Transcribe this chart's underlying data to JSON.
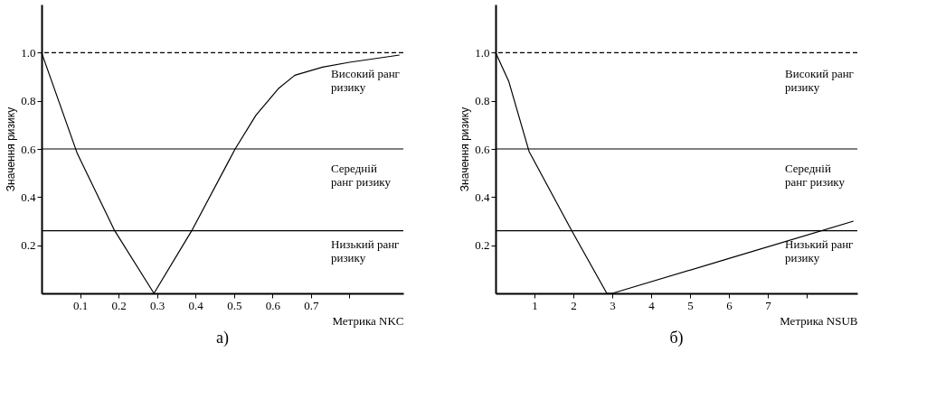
{
  "chart_data": [
    {
      "type": "line",
      "title": "а)",
      "xlabel": "Метрика NKC",
      "ylabel": "Значення ризику",
      "x": [
        0,
        0.093,
        0.19,
        0.292,
        0.39,
        0.503,
        0.557,
        0.615,
        0.658,
        0.73,
        0.8,
        0.93
      ],
      "series": [
        {
          "color": "#000000",
          "values": [
            1.0,
            0.58,
            0.26,
            0,
            0.26,
            0.6,
            0.74,
            0.85,
            0.906,
            0.94,
            0.96,
            0.99
          ]
        }
      ],
      "xlim": [
        0,
        0.94
      ],
      "ylim": [
        0,
        1.2
      ],
      "xticks": [
        0.1,
        0.2,
        0.3,
        0.4,
        0.5,
        0.6,
        0.7,
        {
          "value": 0.8,
          "label": null
        }
      ],
      "yticks": [
        0.2,
        0.4,
        0.6,
        0.8,
        {
          "value": 1,
          "label": "1.0"
        }
      ],
      "ref_lines": [
        {
          "axis": "y",
          "value": 1,
          "line_style": "dashed",
          "color": "#000000"
        },
        {
          "axis": "y",
          "value": 0.6,
          "line_style": "solid",
          "color": "#000000"
        },
        {
          "axis": "y",
          "value": 0.26,
          "line_style": "solid",
          "color": "#000000"
        }
      ],
      "annotations": [
        "Високий ранг\nризику",
        "Середній\nранг ризику",
        "Низький ранг\nризику"
      ],
      "grid": false,
      "marker": "none",
      "line_style": "solid"
    },
    {
      "type": "line",
      "title": "б)",
      "xlabel": "Метрика NSUB",
      "ylabel": "Значення ризику",
      "x": [
        0,
        0.34,
        0.86,
        1.96,
        2.86,
        3.0,
        5.9,
        9.2
      ],
      "series": [
        {
          "color": "#000000",
          "values": [
            1.0,
            0.88,
            0.59,
            0.26,
            0,
            0,
            0.14,
            0.3
          ]
        }
      ],
      "xlim": [
        0,
        9.3
      ],
      "ylim": [
        0,
        1.2
      ],
      "xticks": [
        1,
        2,
        3,
        4,
        5,
        6,
        7,
        {
          "value": 8,
          "label": null
        }
      ],
      "yticks": [
        0.2,
        0.4,
        0.6,
        0.8,
        {
          "value": 1,
          "label": "1.0"
        }
      ],
      "ref_lines": [
        {
          "axis": "y",
          "value": 1,
          "line_style": "dashed",
          "color": "#000000"
        },
        {
          "axis": "y",
          "value": 0.6,
          "line_style": "solid",
          "color": "#000000"
        },
        {
          "axis": "y",
          "value": 0.26,
          "line_style": "solid",
          "color": "#000000"
        }
      ],
      "annotations": [
        "Високий ранг\nризику",
        "Середній\nранг ризику",
        "Низький ранг\nризику"
      ],
      "grid": false,
      "marker": "none",
      "line_style": "solid"
    }
  ]
}
